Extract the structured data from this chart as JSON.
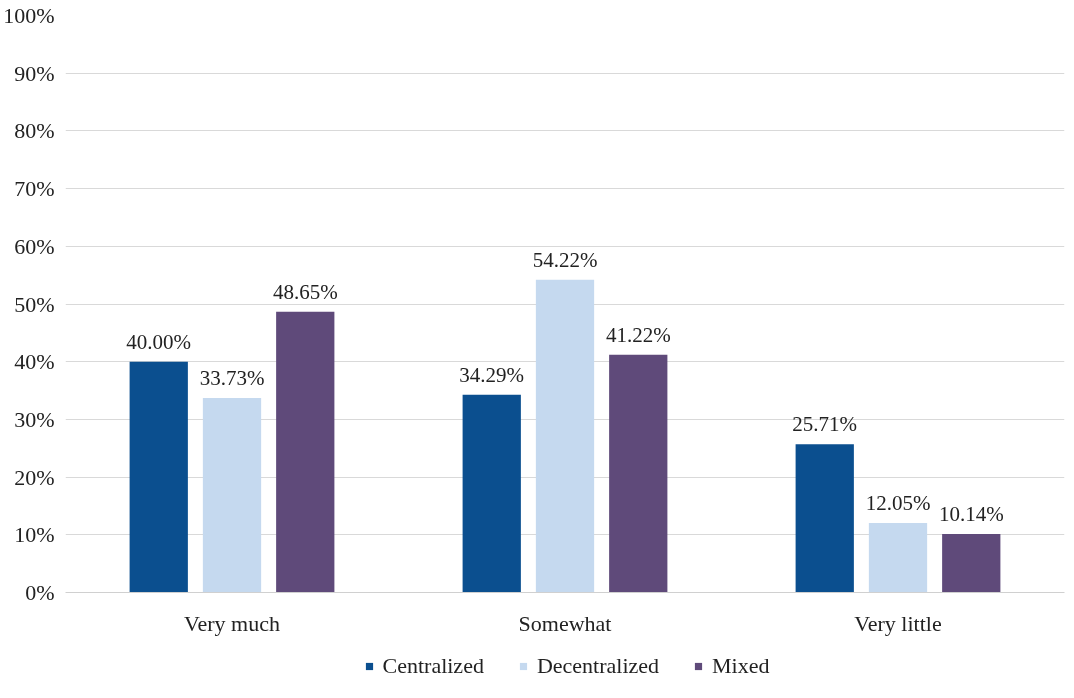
{
  "chart_data": {
    "type": "bar",
    "categories": [
      "Very much",
      "Somewhat",
      "Very little"
    ],
    "series": [
      {
        "name": "Centralized",
        "color": "#0b4f8f",
        "values": [
          40.0,
          34.29,
          25.71
        ],
        "value_labels": [
          "40.00%",
          "34.29%",
          "25.71%"
        ]
      },
      {
        "name": "Decentralized",
        "color": "#c5d9ef",
        "values": [
          33.73,
          54.22,
          12.05
        ],
        "value_labels": [
          "33.73%",
          "54.22%",
          "12.05%"
        ]
      },
      {
        "name": "Mixed",
        "color": "#5f4a7a",
        "values": [
          48.65,
          41.22,
          10.14
        ],
        "value_labels": [
          "48.65%",
          "41.22%",
          "10.14%"
        ]
      }
    ],
    "ylim": [
      0,
      100
    ],
    "yticks": [
      {
        "value": 0,
        "label": "0%"
      },
      {
        "value": 10,
        "label": "10%"
      },
      {
        "value": 20,
        "label": "20%"
      },
      {
        "value": 30,
        "label": "30%"
      },
      {
        "value": 40,
        "label": "40%"
      },
      {
        "value": 50,
        "label": "50%"
      },
      {
        "value": 60,
        "label": "60%"
      },
      {
        "value": 70,
        "label": "70%"
      },
      {
        "value": 80,
        "label": "80%"
      },
      {
        "value": 90,
        "label": "90%"
      },
      {
        "value": 100,
        "label": "100%"
      }
    ],
    "grid": "y",
    "legend": "bottom"
  }
}
